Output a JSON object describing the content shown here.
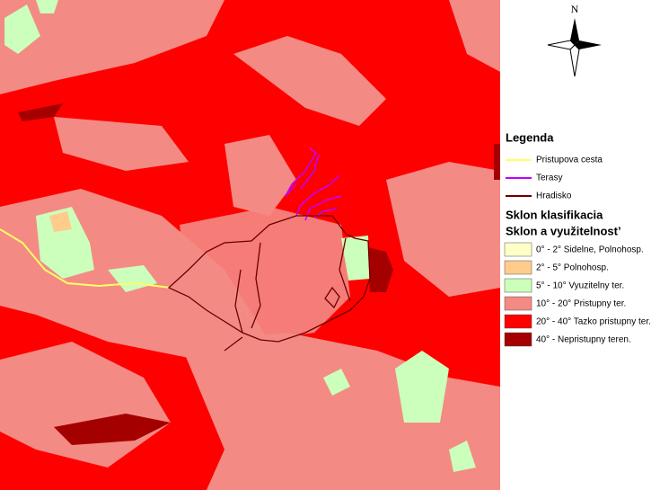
{
  "north": "N",
  "legend": {
    "title": "Legenda",
    "lines": [
      {
        "label": "Pristupova cesta",
        "color": "#ffff66"
      },
      {
        "label": "Terasy",
        "color": "#c000ff"
      },
      {
        "label": "Hradisko",
        "color": "#6b0000"
      }
    ],
    "classification_title": "Sklon klasifikacia",
    "subtitle": "Sklon a využitelnost’",
    "classes": [
      {
        "label": "0° - 2° Sidelne, Polnohosp.",
        "color": "#ffffc8"
      },
      {
        "label": "2° - 5° Polnohosp.",
        "color": "#ffcc8c"
      },
      {
        "label": "5° - 10° Vyuzitelny ter.",
        "color": "#ccffbb"
      },
      {
        "label": "10° - 20° Pristupny ter.",
        "color": "#f48a84"
      },
      {
        "label": "20° - 40° Tazko pristupny ter.",
        "color": "#ff0000"
      },
      {
        "label": "40° -   Nepristupny teren.",
        "color": "#a50000"
      }
    ]
  }
}
